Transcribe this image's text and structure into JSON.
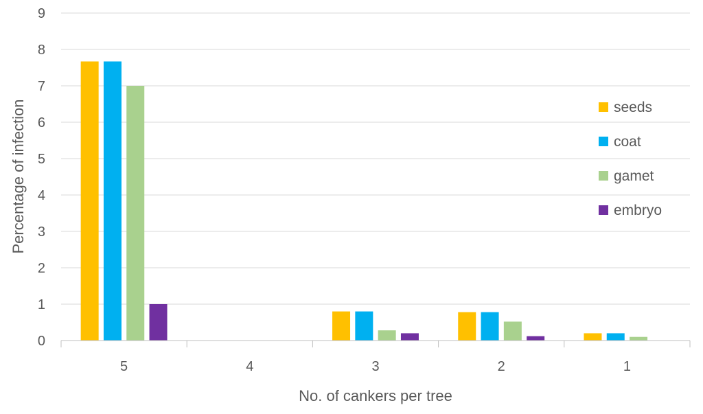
{
  "chart_data": {
    "type": "bar",
    "title": "",
    "xlabel": "No. of cankers per tree",
    "ylabel": "Percentage of infection",
    "categories": [
      "5",
      "4",
      "3",
      "2",
      "1"
    ],
    "ylim": [
      0,
      9
    ],
    "yticks": [
      0,
      1,
      2,
      3,
      4,
      5,
      6,
      7,
      8,
      9
    ],
    "grid": true,
    "legend_position": "right",
    "series": [
      {
        "name": "seeds",
        "color": "#FFC000",
        "values": [
          7.67,
          0,
          0.8,
          0.78,
          0.2
        ]
      },
      {
        "name": "coat",
        "color": "#00B0F0",
        "values": [
          7.67,
          0,
          0.8,
          0.78,
          0.2
        ]
      },
      {
        "name": "gamet",
        "color": "#A9D18E",
        "values": [
          7.0,
          0,
          0.28,
          0.52,
          0.1
        ]
      },
      {
        "name": "embryo",
        "color": "#7030A0",
        "values": [
          1.0,
          0,
          0.2,
          0.12,
          0
        ]
      }
    ]
  }
}
